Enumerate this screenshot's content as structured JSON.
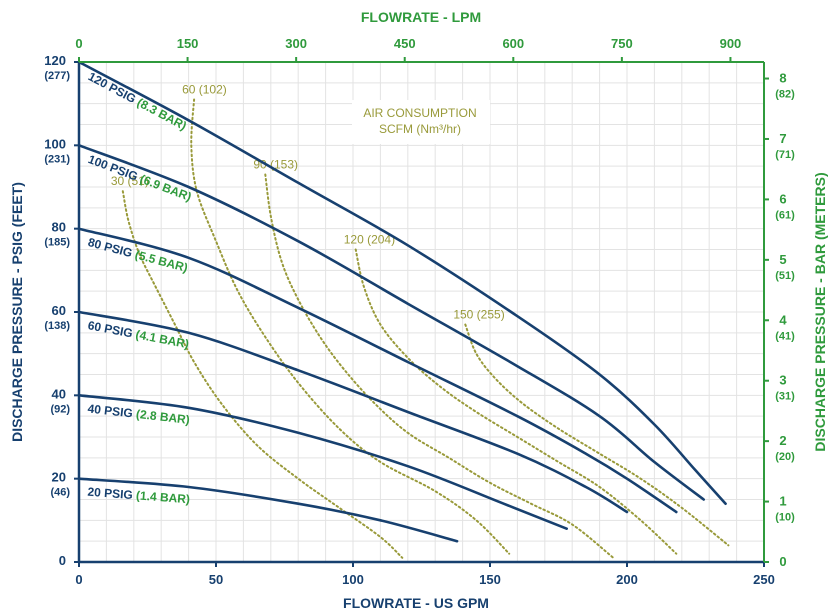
{
  "chart_data": {
    "type": "line",
    "title": "",
    "xlabel": "FLOWRATE - US GPM",
    "ylabel": "DISCHARGE PRESSURE  - PSIG (FEET)",
    "x2label": "FLOWRATE - LPM",
    "y2label": "DISCHARGE PRESSURE - BAR (METERS)",
    "xlim": [
      0,
      250
    ],
    "ylim": [
      0,
      120
    ],
    "grid": true,
    "colors": {
      "primary": "#17406f",
      "secondary": "#2f9a3c",
      "air": "#999a3a",
      "grid": "#e3e3e3"
    },
    "x_ticks": [
      "0",
      "50",
      "100",
      "150",
      "200",
      "250"
    ],
    "y_ticks": [
      {
        "value": 0,
        "label": "0",
        "sub": ""
      },
      {
        "value": 20,
        "label": "20",
        "sub": "(46)"
      },
      {
        "value": 40,
        "label": "40",
        "sub": "(92)"
      },
      {
        "value": 60,
        "label": "60",
        "sub": "(138)"
      },
      {
        "value": 80,
        "label": "80",
        "sub": "(185)"
      },
      {
        "value": 100,
        "label": "100",
        "sub": "(231)"
      },
      {
        "value": 120,
        "label": "120",
        "sub": "(277)"
      }
    ],
    "top_ticks": [
      {
        "value": 0,
        "label": "0"
      },
      {
        "value": 150,
        "label": "150"
      },
      {
        "value": 300,
        "label": "300"
      },
      {
        "value": 450,
        "label": "450"
      },
      {
        "value": 600,
        "label": "600"
      },
      {
        "value": 750,
        "label": "750"
      },
      {
        "value": 900,
        "label": "900"
      }
    ],
    "right_ticks": [
      {
        "value": 0,
        "label": "0",
        "sub": ""
      },
      {
        "value": 1,
        "label": "1",
        "sub": "(10)"
      },
      {
        "value": 2,
        "label": "2",
        "sub": "(20)"
      },
      {
        "value": 3,
        "label": "3",
        "sub": "(31)"
      },
      {
        "value": 4,
        "label": "4",
        "sub": "(41)"
      },
      {
        "value": 5,
        "label": "5",
        "sub": "(51)"
      },
      {
        "value": 6,
        "label": "6",
        "sub": "(61)"
      },
      {
        "value": 7,
        "label": "7",
        "sub": "(71)"
      },
      {
        "value": 8,
        "label": "8",
        "sub": "(82)"
      }
    ],
    "series": [
      {
        "psig": "120 PSIG",
        "bar": "(8.3 BAR)",
        "points": [
          [
            0,
            120
          ],
          [
            40,
            106
          ],
          [
            80,
            91
          ],
          [
            120,
            76
          ],
          [
            160,
            59
          ],
          [
            190,
            45
          ],
          [
            210,
            33
          ],
          [
            225,
            22
          ],
          [
            236,
            14
          ]
        ]
      },
      {
        "psig": "100 PSIG",
        "bar": "(6.9 BAR)",
        "points": [
          [
            0,
            100
          ],
          [
            40,
            90
          ],
          [
            80,
            77
          ],
          [
            120,
            62
          ],
          [
            160,
            47
          ],
          [
            190,
            35
          ],
          [
            210,
            24
          ],
          [
            228,
            15
          ]
        ]
      },
      {
        "psig": "80 PSIG",
        "bar": "(5.5 BAR)",
        "points": [
          [
            0,
            80
          ],
          [
            40,
            73
          ],
          [
            80,
            61
          ],
          [
            120,
            48
          ],
          [
            160,
            35
          ],
          [
            185,
            26
          ],
          [
            200,
            20
          ],
          [
            218,
            12
          ]
        ]
      },
      {
        "psig": "60 PSIG",
        "bar": "(4.1 BAR)",
        "points": [
          [
            0,
            60
          ],
          [
            40,
            55
          ],
          [
            80,
            46
          ],
          [
            120,
            36
          ],
          [
            160,
            26
          ],
          [
            185,
            18
          ],
          [
            200,
            12
          ]
        ]
      },
      {
        "psig": "40 PSIG",
        "bar": "(2.8 BAR)",
        "points": [
          [
            0,
            40
          ],
          [
            40,
            37
          ],
          [
            80,
            31
          ],
          [
            120,
            23
          ],
          [
            155,
            14
          ],
          [
            178,
            8
          ]
        ]
      },
      {
        "psig": "20 PSIG",
        "bar": "(1.4 BAR)",
        "points": [
          [
            0,
            20
          ],
          [
            40,
            18
          ],
          [
            80,
            14
          ],
          [
            110,
            10
          ],
          [
            138,
            5
          ]
        ]
      }
    ],
    "air_consumption_title": [
      "AIR CONSUMPTION",
      "SCFM (Nm³/hr)"
    ],
    "air_lines": [
      {
        "label": "30 (51)",
        "points": [
          [
            16,
            89
          ],
          [
            18,
            82
          ],
          [
            22,
            74
          ],
          [
            28,
            66
          ],
          [
            35,
            57
          ],
          [
            42,
            48
          ],
          [
            52,
            38
          ],
          [
            65,
            28
          ],
          [
            80,
            20
          ],
          [
            95,
            13
          ],
          [
            110,
            6
          ],
          [
            118,
            1
          ]
        ]
      },
      {
        "label": "60 (102)",
        "points": [
          [
            42,
            111
          ],
          [
            41,
            100
          ],
          [
            43,
            89
          ],
          [
            50,
            77
          ],
          [
            58,
            65
          ],
          [
            68,
            54
          ],
          [
            80,
            43
          ],
          [
            95,
            32
          ],
          [
            110,
            24
          ],
          [
            130,
            17
          ],
          [
            145,
            10
          ],
          [
            157,
            2
          ]
        ]
      },
      {
        "label": "90 (153)",
        "points": [
          [
            68,
            93
          ],
          [
            70,
            83
          ],
          [
            74,
            72
          ],
          [
            80,
            63
          ],
          [
            88,
            54
          ],
          [
            97,
            46
          ],
          [
            108,
            38
          ],
          [
            120,
            31
          ],
          [
            135,
            25
          ],
          [
            150,
            19
          ],
          [
            165,
            14
          ],
          [
            180,
            9
          ],
          [
            195,
            1
          ]
        ]
      },
      {
        "label": "120 (204)",
        "points": [
          [
            101,
            75
          ],
          [
            104,
            66
          ],
          [
            110,
            57
          ],
          [
            120,
            49
          ],
          [
            132,
            42
          ],
          [
            145,
            36
          ],
          [
            160,
            30
          ],
          [
            175,
            24
          ],
          [
            190,
            18
          ],
          [
            205,
            10
          ],
          [
            218,
            2
          ]
        ]
      },
      {
        "label": "150 (255)",
        "points": [
          [
            141,
            57
          ],
          [
            145,
            50
          ],
          [
            152,
            44
          ],
          [
            162,
            38
          ],
          [
            175,
            32
          ],
          [
            190,
            26
          ],
          [
            205,
            20
          ],
          [
            220,
            13
          ],
          [
            237,
            4
          ]
        ]
      }
    ]
  }
}
